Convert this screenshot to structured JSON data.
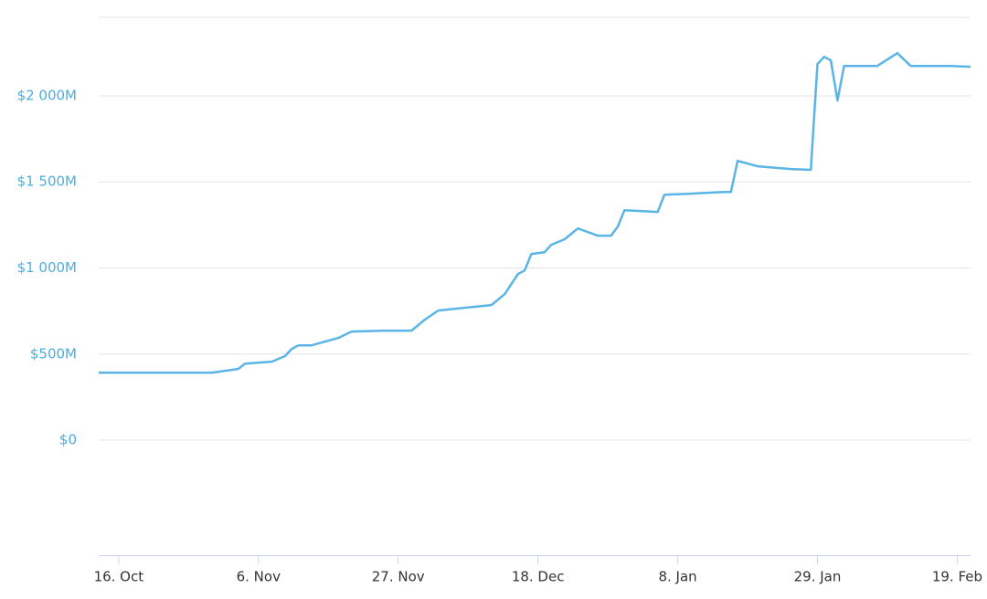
{
  "chart_data": {
    "type": "line",
    "x": [
      "Oct 13",
      "Oct 30",
      "Nov 3",
      "Nov 4",
      "Nov 8",
      "Nov 10",
      "Nov 11",
      "Nov 12",
      "Nov 14",
      "Nov 18",
      "Nov 20",
      "Nov 25",
      "Nov 29",
      "Dec 1",
      "Dec 3",
      "Dec 11",
      "Dec 13",
      "Dec 15",
      "Dec 16",
      "Dec 17",
      "Dec 19",
      "Dec 20",
      "Dec 22",
      "Dec 24",
      "Dec 27",
      "Dec 29",
      "Dec 30",
      "Dec 31",
      "Jan 5",
      "Jan 6",
      "Jan 10",
      "Jan 15",
      "Jan 16",
      "Jan 17",
      "Jan 20",
      "Jan 25",
      "Jan 28",
      "Jan 29",
      "Jan 30",
      "Jan 31",
      "Feb 1",
      "Feb 2",
      "Feb 3",
      "Feb 7",
      "Feb 10",
      "Feb 12",
      "Feb 18",
      "Feb 21"
    ],
    "series": [
      {
        "color": "#5ab4e5",
        "values": [
          392,
          392,
          414,
          445,
          456,
          488,
          530,
          551,
          551,
          594,
          631,
          636,
          636,
          700,
          753,
          785,
          848,
          965,
          986,
          1082,
          1092,
          1135,
          1167,
          1230,
          1188,
          1188,
          1241,
          1336,
          1326,
          1426,
          1432,
          1442,
          1442,
          1622,
          1591,
          1575,
          1570,
          2185,
          2227,
          2206,
          1973,
          2174,
          2174,
          2174,
          2248,
          2174,
          2174,
          2169
        ]
      }
    ],
    "xlim": [
      "Oct 13",
      "Feb 21"
    ],
    "xticks": [
      {
        "value": "Oct 16",
        "label": "16. Oct"
      },
      {
        "value": "Nov 6",
        "label": "6. Nov"
      },
      {
        "value": "Nov 27",
        "label": "27. Nov"
      },
      {
        "value": "Dec 18",
        "label": "18. Dec"
      },
      {
        "value": "Jan 8",
        "label": "8. Jan"
      },
      {
        "value": "Jan 29",
        "label": "29. Jan"
      },
      {
        "value": "Feb 19",
        "label": "19. Feb"
      }
    ],
    "ylim": [
      -668,
      2456
    ],
    "yticks": [
      {
        "value": 0,
        "label": "$0"
      },
      {
        "value": 500,
        "label": "$500M"
      },
      {
        "value": 1000,
        "label": "$1 000M"
      },
      {
        "value": 1500,
        "label": "$1 500M"
      },
      {
        "value": 2000,
        "label": "$2 000M"
      }
    ],
    "grid": true
  }
}
